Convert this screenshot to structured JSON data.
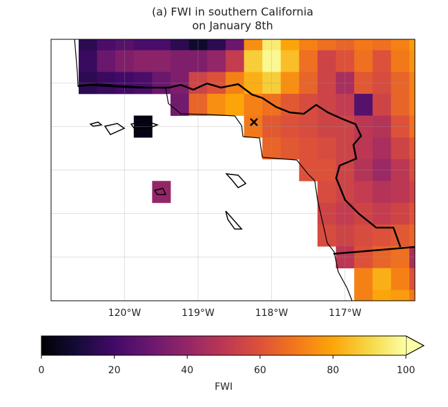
{
  "chart_data": {
    "type": "heatmap",
    "title": "(a) FWI in southern California",
    "subtitle": "on January 8th",
    "colormap": "inferno",
    "xlim": [
      -121,
      -116.05
    ],
    "ylim": [
      32,
      35
    ],
    "xticks": [
      {
        "value": -120,
        "label": "120°W"
      },
      {
        "value": -119,
        "label": "119°W"
      },
      {
        "value": -118,
        "label": "118°W"
      },
      {
        "value": -117,
        "label": "117°W"
      }
    ],
    "ygrid": [
      32.5,
      33,
      33.5,
      34,
      34.5
    ],
    "grid": true,
    "x_edges": [
      -120.625,
      -120.375,
      -120.125,
      -119.875,
      -119.625,
      -119.375,
      -119.125,
      -118.875,
      -118.625,
      -118.375,
      -118.125,
      -117.875,
      -117.625,
      -117.375,
      -117.125,
      -116.875,
      -116.625,
      -116.375,
      -116.125,
      -115.875
    ],
    "y_edges": [
      35.125,
      34.875,
      34.625,
      34.375,
      34.125,
      33.875,
      33.625,
      33.375,
      33.125,
      32.875,
      32.625,
      32.375,
      32.125,
      31.875
    ],
    "values": [
      [
        15,
        22,
        25,
        22,
        22,
        15,
        8,
        15,
        30,
        75,
        95,
        80,
        72,
        68,
        65,
        70,
        68,
        72,
        78
      ],
      [
        18,
        30,
        35,
        38,
        38,
        35,
        35,
        40,
        52,
        88,
        98,
        85,
        68,
        55,
        60,
        68,
        60,
        70,
        76
      ],
      [
        15,
        18,
        20,
        22,
        30,
        35,
        55,
        60,
        72,
        82,
        88,
        75,
        65,
        55,
        45,
        62,
        58,
        65,
        72
      ],
      [
        null,
        null,
        null,
        null,
        null,
        32,
        65,
        75,
        80,
        72,
        68,
        62,
        58,
        55,
        52,
        25,
        55,
        65,
        72
      ],
      [
        null,
        null,
        null,
        3,
        null,
        null,
        null,
        null,
        null,
        70,
        62,
        60,
        58,
        55,
        55,
        50,
        48,
        60,
        68
      ],
      [
        null,
        null,
        null,
        null,
        null,
        null,
        null,
        null,
        null,
        null,
        65,
        62,
        60,
        58,
        55,
        50,
        45,
        55,
        62
      ],
      [
        null,
        null,
        null,
        null,
        null,
        null,
        null,
        null,
        null,
        null,
        null,
        null,
        60,
        60,
        55,
        48,
        42,
        50,
        58
      ],
      [
        null,
        null,
        null,
        null,
        40,
        null,
        null,
        null,
        null,
        null,
        null,
        null,
        null,
        58,
        55,
        52,
        48,
        50,
        55
      ],
      [
        null,
        null,
        null,
        null,
        null,
        null,
        null,
        null,
        null,
        null,
        null,
        null,
        null,
        55,
        52,
        55,
        52,
        55,
        60
      ],
      [
        null,
        null,
        null,
        null,
        null,
        null,
        null,
        null,
        null,
        null,
        null,
        null,
        null,
        58,
        55,
        58,
        60,
        62,
        65
      ],
      [
        null,
        null,
        null,
        null,
        null,
        null,
        null,
        null,
        null,
        null,
        null,
        null,
        null,
        null,
        50,
        60,
        65,
        68,
        45
      ],
      [
        null,
        null,
        null,
        null,
        null,
        null,
        null,
        null,
        null,
        null,
        null,
        null,
        null,
        null,
        null,
        72,
        82,
        72,
        60
      ],
      [
        null,
        null,
        null,
        null,
        null,
        null,
        null,
        null,
        null,
        null,
        null,
        null,
        null,
        null,
        null,
        72,
        80,
        78,
        70
      ]
    ],
    "points": [
      {
        "x": -118.24,
        "y": 34.05
      }
    ],
    "colorbar": {
      "label": "FWI",
      "clim": [
        0,
        100
      ],
      "ticks": [
        0,
        20,
        40,
        60,
        80,
        100
      ]
    }
  }
}
